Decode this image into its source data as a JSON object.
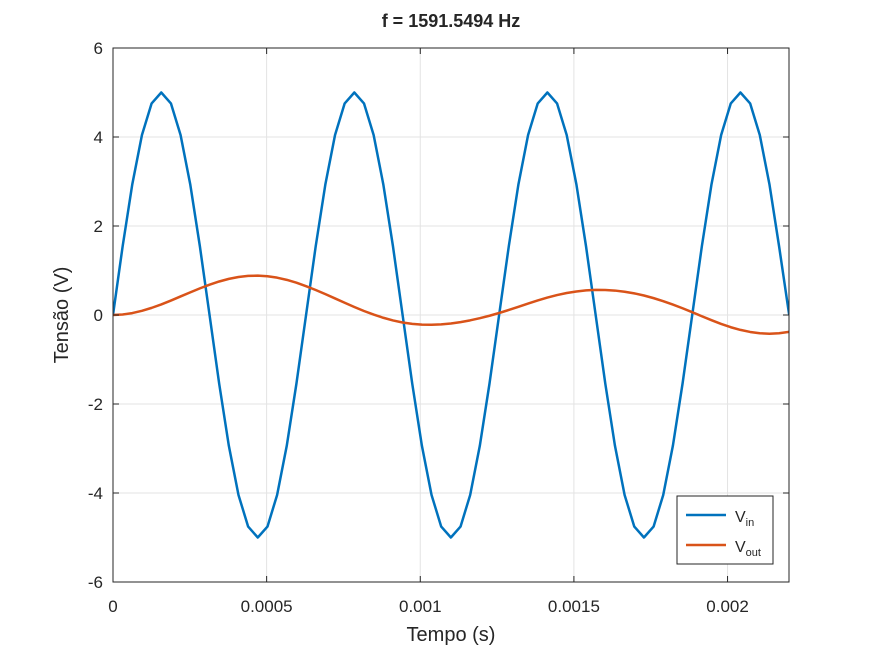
{
  "chart_data": {
    "type": "line",
    "title": "f = 1591.5494 Hz",
    "xlabel": "Tempo (s)",
    "ylabel": "Tensão (V)",
    "xlim": [
      0,
      0.0022
    ],
    "ylim": [
      -6,
      6
    ],
    "xticks": [
      0,
      0.0005,
      0.001,
      0.0015,
      0.002
    ],
    "xtick_labels": [
      "0",
      "0.0005",
      "0.001",
      "0.0015",
      "0.002"
    ],
    "yticks": [
      -6,
      -4,
      -2,
      0,
      2,
      4,
      6
    ],
    "ytick_labels": [
      "-6",
      "-4",
      "-2",
      "0",
      "2",
      "4",
      "6"
    ],
    "grid": true,
    "legend_position": "bottom-right",
    "series": [
      {
        "name": "Vin",
        "legend_main": "V",
        "legend_sub": "in",
        "color": "#0072BD",
        "x": [
          0,
          3.14e-05,
          6.28e-05,
          9.42e-05,
          0.0001257,
          0.0001571,
          0.0001885,
          0.0002199,
          0.0002513,
          0.0002827,
          0.0003142,
          0.0003456,
          0.000377,
          0.0004084,
          0.0004398,
          0.0004712,
          0.0005027,
          0.0005341,
          0.0005655,
          0.0005969,
          0.0006283,
          0.0006597,
          0.0006912,
          0.0007226,
          0.000754,
          0.0007854,
          0.0008168,
          0.0008482,
          0.0008796,
          0.0009111,
          0.0009425,
          0.0009739,
          0.0010053,
          0.0010367,
          0.0010681,
          0.0010996,
          0.001131,
          0.0011624,
          0.0011938,
          0.0012252,
          0.0012566,
          0.0012881,
          0.0013195,
          0.0013509,
          0.0013823,
          0.0014137,
          0.0014451,
          0.0014765,
          0.001508,
          0.0015394,
          0.0015708,
          0.0016022,
          0.0016336,
          0.001665,
          0.0016965,
          0.0017279,
          0.0017593,
          0.0017907,
          0.0018221,
          0.0018535,
          0.001885,
          0.0019164,
          0.0019478,
          0.0019792,
          0.0020106,
          0.002042,
          0.0020735,
          0.0021049,
          0.0021363,
          0.0021677,
          0.0022
        ],
        "y": [
          0,
          1.545,
          2.939,
          4.045,
          4.755,
          5,
          4.755,
          4.045,
          2.939,
          1.545,
          0,
          -1.545,
          -2.939,
          -4.045,
          -4.755,
          -5,
          -4.755,
          -4.045,
          -2.939,
          -1.545,
          0,
          1.545,
          2.939,
          4.045,
          4.755,
          5,
          4.755,
          4.045,
          2.939,
          1.545,
          0,
          -1.545,
          -2.939,
          -4.045,
          -4.755,
          -5,
          -4.755,
          -4.045,
          -2.939,
          -1.545,
          0,
          1.545,
          2.939,
          4.045,
          4.755,
          5,
          4.755,
          4.045,
          2.939,
          1.545,
          0,
          -1.545,
          -2.939,
          -4.045,
          -4.755,
          -5,
          -4.755,
          -4.045,
          -2.939,
          -1.545,
          0,
          1.545,
          2.939,
          4.045,
          4.755,
          5,
          4.755,
          4.045,
          2.939,
          1.545,
          0.03
        ]
      },
      {
        "name": "Vout",
        "legend_main": "V",
        "legend_sub": "out",
        "color": "#D95319",
        "x": [
          0,
          3.14e-05,
          6.28e-05,
          9.42e-05,
          0.0001257,
          0.0001571,
          0.0001885,
          0.0002199,
          0.0002513,
          0.0002827,
          0.0003142,
          0.0003456,
          0.000377,
          0.0004084,
          0.0004398,
          0.0004712,
          0.0005027,
          0.0005341,
          0.0005655,
          0.0005969,
          0.0006283,
          0.0006597,
          0.0006912,
          0.0007226,
          0.000754,
          0.0007854,
          0.0008168,
          0.0008482,
          0.0008796,
          0.0009111,
          0.0009425,
          0.0009739,
          0.0010053,
          0.0010367,
          0.0010681,
          0.0010996,
          0.001131,
          0.0011624,
          0.0011938,
          0.0012252,
          0.0012566,
          0.0012881,
          0.0013195,
          0.0013509,
          0.0013823,
          0.0014137,
          0.0014451,
          0.0014765,
          0.001508,
          0.0015394,
          0.0015708,
          0.0016022,
          0.0016336,
          0.001665,
          0.0016965,
          0.0017279,
          0.0017593,
          0.0017907,
          0.0018221,
          0.0018535,
          0.001885,
          0.0019164,
          0.0019478,
          0.0019792,
          0.0020106,
          0.002042,
          0.0020735,
          0.0021049,
          0.0021363,
          0.0021677,
          0.0022
        ],
        "y": [
          0,
          0.011,
          0.043,
          0.094,
          0.16,
          0.238,
          0.325,
          0.417,
          0.509,
          0.598,
          0.681,
          0.753,
          0.812,
          0.854,
          0.879,
          0.884,
          0.871,
          0.839,
          0.79,
          0.725,
          0.648,
          0.562,
          0.469,
          0.372,
          0.275,
          0.18,
          0.09,
          0.009,
          -0.062,
          -0.122,
          -0.168,
          -0.2,
          -0.217,
          -0.22,
          -0.211,
          -0.19,
          -0.16,
          -0.12,
          -0.072,
          -0.017,
          0.045,
          0.113,
          0.185,
          0.257,
          0.327,
          0.391,
          0.448,
          0.494,
          0.529,
          0.553,
          0.564,
          0.563,
          0.549,
          0.523,
          0.486,
          0.438,
          0.379,
          0.311,
          0.234,
          0.152,
          0.063,
          -0.028,
          -0.117,
          -0.201,
          -0.275,
          -0.335,
          -0.381,
          -0.411,
          -0.42,
          -0.409,
          -0.38
        ]
      }
    ]
  }
}
